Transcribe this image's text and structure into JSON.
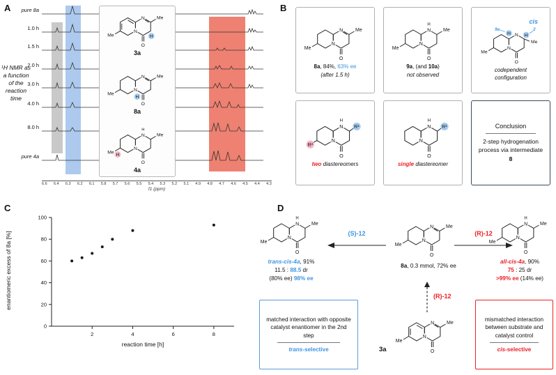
{
  "atoms": {
    "n": "N",
    "o": "O",
    "h": "H",
    "me": "Me",
    "r1": "R¹",
    "r2": "R²"
  },
  "panels": {
    "a": {
      "label": "A",
      "axis_label": "¹H NMR as a function of the reaction time",
      "trace_labels": [
        "pure 8a",
        "1.0 h",
        "1.5 h",
        "2.0 h",
        "3.0 h",
        "4.0 h",
        "8.0 h",
        "pure 4a"
      ],
      "structures": [
        {
          "id": "3a"
        },
        {
          "id": "8a"
        },
        {
          "id": "4a"
        }
      ],
      "ppm_ticks": [
        "6.6",
        "6.4",
        "6.3",
        "6.2",
        "6.1",
        "5.8",
        "5.7",
        "5.6",
        "5.5",
        "5.4",
        "5.3",
        "5.2",
        "5.1",
        "4.9",
        "4.8",
        "4.7",
        "4.6",
        "4.5",
        "4.4",
        "4.3"
      ],
      "ppm_axis_label": "f1 (ppm)"
    },
    "b": {
      "label": "B",
      "box1": {
        "name": "8a",
        "mid": ", 84%, ",
        "ee": "63% ee",
        "note": "(after 1.5 h)"
      },
      "box2": {
        "name": "9a",
        "mid": ", (and ",
        "name2": "10a",
        "close": ")",
        "note": "not observed"
      },
      "box3": {
        "cis": "cis",
        "pos_a": "9a",
        "pos_b": "2",
        "caption": "codependent configuration"
      },
      "box4": {
        "em": "two",
        "rest": " diastereomers"
      },
      "box5": {
        "em": "single",
        "rest": " diastereomer"
      },
      "conclusion": {
        "title": "Conclusion",
        "body": "2-step hydrogenation process via intermediate ",
        "bold": "8"
      }
    },
    "c": {
      "label": "C"
    },
    "d": {
      "label": "D",
      "left_arrow_label": "(S)-12",
      "right_arrow_label": "(R)-12",
      "bottom_arrow_label": "(R)-12",
      "center": {
        "name": "8a",
        "rest": ", 0.3 mmol, 72% ee"
      },
      "left_product": {
        "name": "trans-cis-4a",
        "rest": ", 91%",
        "dr_pre": "11.5 : ",
        "dr_em": "88.5",
        "dr_post": " dr",
        "ee_pre": "(80% ee) ",
        "ee_em": "98% ee"
      },
      "right_product": {
        "name": "all-cis-4a",
        "rest": ", 90%",
        "dr_em": "75",
        "dr_post": " : 25 dr",
        "ee_em": ">99% ee",
        "ee_post": " (14% ee)"
      },
      "start_material": "3a",
      "blue_box": {
        "text": "matched interaction with opposite catalyst enantiomer in the 2nd step",
        "em": "trans",
        "rest": "-selective"
      },
      "red_box": {
        "text": "mismatched interaction between substrate and catalyst control",
        "em": "cis",
        "rest": "-selective"
      }
    }
  },
  "chart_data": {
    "type": "scatter",
    "x": [
      1,
      1.5,
      2,
      2.5,
      3,
      4,
      8
    ],
    "y": [
      60,
      63,
      67,
      73,
      80,
      88,
      93
    ],
    "xlabel": "reaction time [h]",
    "ylabel": "enantiomeric excess of 8a [%]",
    "xlim": [
      0,
      9
    ],
    "ylim": [
      0,
      100
    ],
    "x_ticks": [
      2,
      4,
      6,
      8
    ],
    "y_ticks": [
      0,
      20,
      40,
      60,
      80,
      100
    ],
    "grid": false,
    "marker": "dot",
    "color": "#1a1a1a",
    "legend": null,
    "title": ""
  },
  "colors": {
    "accent_blue": "#3f95e0",
    "accent_red": "#ee1c25",
    "band_blue": "#adc9ee",
    "band_gray": "#c9c9c9",
    "band_red": "#ee8171",
    "circle_blue": "#a9cdf0",
    "circle_pink": "#f5b8c4",
    "box_blue": "#5b9bd5",
    "box_red": "#f02020"
  }
}
